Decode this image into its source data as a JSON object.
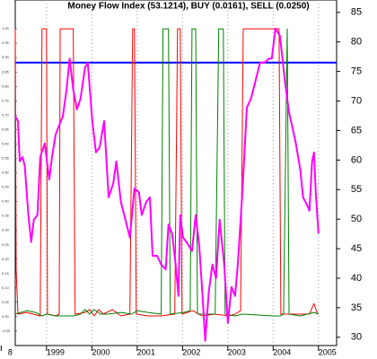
{
  "chart_data": {
    "type": "line",
    "title": "Money Flow Index (53.1214), BUY (0.0161), SELL (0.0250)",
    "xlim": [
      1998.31,
      2005.4
    ],
    "xticks": [
      {
        "value": 1998,
        "label": "8"
      },
      1999,
      2000,
      2001,
      2002,
      2003,
      2004,
      2005
    ],
    "ylim": [
      -0.1,
      1.1
    ],
    "yticks": [
      {
        "value": -0.05,
        "label": "-0.05"
      },
      {
        "value": 0,
        "label": "0.00"
      },
      {
        "value": 0.05,
        "label": "0.05"
      },
      {
        "value": 0.1,
        "label": "0.10"
      },
      {
        "value": 0.15,
        "label": "0.15"
      },
      {
        "value": 0.2,
        "label": "0.20"
      },
      {
        "value": 0.25,
        "label": "0.25"
      },
      {
        "value": 0.3,
        "label": "0.30"
      },
      {
        "value": 0.35,
        "label": "0.35"
      },
      {
        "value": 0.4,
        "label": "0.40"
      },
      {
        "value": 0.45,
        "label": "0.45"
      },
      {
        "value": 0.5,
        "label": "0.50"
      },
      {
        "value": 0.55,
        "label": "0.55"
      },
      {
        "value": 0.6,
        "label": "0.60"
      },
      {
        "value": 0.65,
        "label": "0.65"
      },
      {
        "value": 0.7,
        "label": "0.70"
      },
      {
        "value": 0.75,
        "label": "0.75"
      },
      {
        "value": 0.8,
        "label": "0.80"
      },
      {
        "value": 0.85,
        "label": "0.85"
      },
      {
        "value": 0.9,
        "label": "0.90"
      },
      {
        "value": 0.95,
        "label": "0.95"
      },
      {
        "value": 1,
        "label": "1.00"
      }
    ],
    "y2lim": [
      28.6,
      87.1
    ],
    "y2ticks": [
      30,
      35,
      40,
      45,
      50,
      55,
      60,
      65,
      70,
      75,
      80,
      85
    ],
    "grid": true,
    "reference_line": {
      "value": 76.5,
      "color": "#0000ff",
      "axis": "y2"
    },
    "series": [
      {
        "color": "#ff0000",
        "axis": "y",
        "x": [
          1998.31,
          1998.33,
          1998.37,
          1998.56,
          1998.86,
          1998.9,
          1999.0,
          1999.02,
          1999.2,
          1999.28,
          1999.3,
          1999.59,
          1999.63,
          1999.85,
          1999.95,
          2000.05,
          2000.15,
          2000.25,
          2000.45,
          2000.64,
          2000.84,
          2000.9,
          2000.94,
          2000.98,
          2001.24,
          2001.53,
          2001.83,
          2001.89,
          2001.95,
          2001.99,
          2002.23,
          2002.43,
          2002.72,
          2003.02,
          2003.16,
          2003.28,
          2003.34,
          2004.13,
          2004.17,
          2004.5,
          2004.8,
          2004.9,
          2004.98
        ],
        "values": [
          1.0,
          0.165,
          0.009,
          0.015,
          0.003,
          1.0,
          1.0,
          0.009,
          0.003,
          0.009,
          1.0,
          1.0,
          0.009,
          0.015,
          0.025,
          0.003,
          0.025,
          0.009,
          0.025,
          0.003,
          0.009,
          1.0,
          1.0,
          0.009,
          0.003,
          0.003,
          0.009,
          1.0,
          1.0,
          0.009,
          0.021,
          0.003,
          0.009,
          0.003,
          0.009,
          0.021,
          1.0,
          1.0,
          0.009,
          0.009,
          0.009,
          0.046,
          0.009
        ]
      },
      {
        "color": "#008000",
        "axis": "y",
        "x": [
          1998.31,
          1998.56,
          1998.76,
          1998.9,
          1999.0,
          1999.2,
          1999.3,
          1999.59,
          1999.75,
          1999.85,
          1999.95,
          2000.05,
          2000.19,
          2000.35,
          2000.64,
          2000.88,
          2001.0,
          2001.24,
          2001.53,
          2001.57,
          2001.69,
          2001.73,
          2002.03,
          2002.17,
          2002.21,
          2002.29,
          2002.33,
          2002.52,
          2002.72,
          2002.8,
          2002.9,
          2002.94,
          2003.16,
          2003.32,
          2004.01,
          2004.15,
          2004.23,
          2004.31,
          2004.35,
          2004.6,
          2004.9,
          2005.0
        ],
        "values": [
          0.009,
          0.021,
          0.015,
          0.003,
          0.009,
          0.003,
          0.003,
          0.003,
          0.009,
          0.025,
          0.009,
          0.025,
          0.009,
          0.009,
          0.015,
          0.009,
          0.021,
          0.015,
          0.009,
          1.0,
          1.0,
          0.009,
          0.015,
          0.021,
          1.0,
          1.0,
          0.009,
          0.009,
          0.009,
          1.0,
          1.0,
          0.009,
          0.003,
          0.009,
          0.003,
          0.003,
          0.009,
          1.0,
          0.009,
          0.003,
          0.015,
          0.009
        ]
      },
      {
        "color": "#ff00ff",
        "axis": "y2",
        "x": [
          1998.31,
          1998.37,
          1998.41,
          1998.47,
          1998.52,
          1998.6,
          1998.66,
          1998.72,
          1998.8,
          1998.86,
          1998.96,
          1999.06,
          1999.12,
          1999.2,
          1999.28,
          1999.36,
          1999.44,
          1999.51,
          1999.59,
          1999.67,
          1999.75,
          1999.85,
          1999.91,
          2000.01,
          2000.09,
          2000.17,
          2000.27,
          2000.37,
          2000.47,
          2000.54,
          2000.64,
          2000.74,
          2000.84,
          2000.94,
          2001.04,
          2001.1,
          2001.2,
          2001.28,
          2001.34,
          2001.44,
          2001.53,
          2001.63,
          2001.69,
          2001.77,
          2001.85,
          2001.91,
          2001.95,
          2002.01,
          2002.09,
          2002.21,
          2002.29,
          2002.37,
          2002.45,
          2002.5,
          2002.58,
          2002.66,
          2002.74,
          2002.82,
          2002.92,
          2003.0,
          2003.08,
          2003.16,
          2003.22,
          2003.32,
          2003.42,
          2003.51,
          2003.61,
          2003.71,
          2003.81,
          2003.91,
          2003.97,
          2004.05,
          2004.15,
          2004.27,
          2004.35,
          2004.5,
          2004.6,
          2004.66,
          2004.76,
          2004.8,
          2004.86,
          2004.9,
          2004.94,
          2005.0
        ],
        "values": [
          67.4,
          66.6,
          59.8,
          60.5,
          59.0,
          50.7,
          46.1,
          49.9,
          50.7,
          60.5,
          62.8,
          56.7,
          60.5,
          64.3,
          65.9,
          67.4,
          71.9,
          77.2,
          71.9,
          68.6,
          70.4,
          75.7,
          76.5,
          66.6,
          61.3,
          62.1,
          66.6,
          53.7,
          56.0,
          59.8,
          52.9,
          49.9,
          46.9,
          55.2,
          54.5,
          50.7,
          52.9,
          53.7,
          43.8,
          43.8,
          42.3,
          41.5,
          49.1,
          47.6,
          42.3,
          37.0,
          50.7,
          46.9,
          46.1,
          44.6,
          50.7,
          45.4,
          36.2,
          29.4,
          37.7,
          42.3,
          40.0,
          49.9,
          42.3,
          32.4,
          38.5,
          37.0,
          42.3,
          54.5,
          68.9,
          70.4,
          73.4,
          76.5,
          76.5,
          77.2,
          77.2,
          82.3,
          81.0,
          72.7,
          68.1,
          62.8,
          58.3,
          53.7,
          52.2,
          51.4,
          59.8,
          61.3,
          54.5,
          47.6
        ]
      }
    ]
  }
}
